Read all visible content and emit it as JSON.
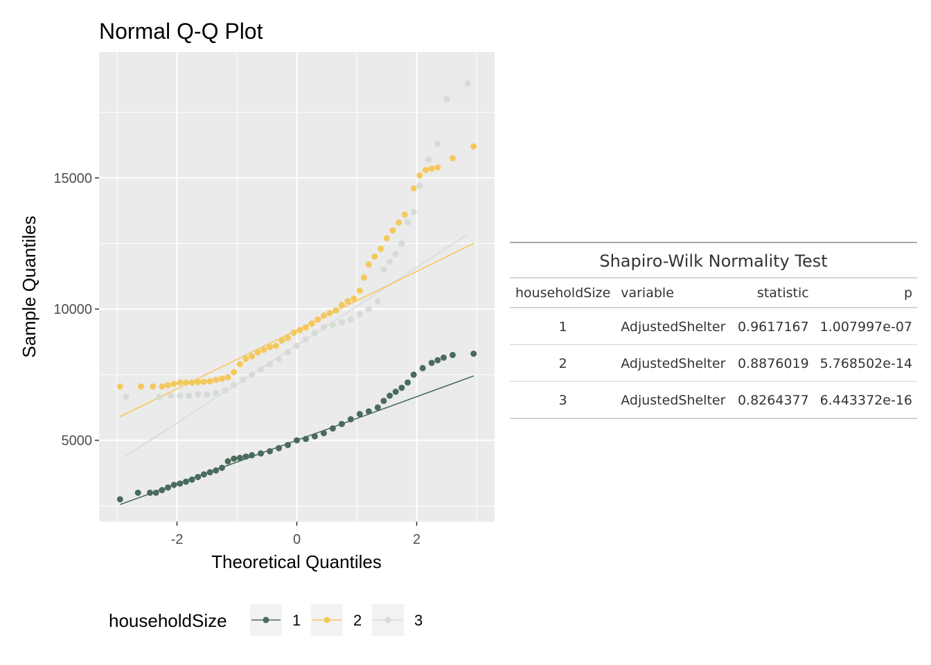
{
  "chart_data": {
    "type": "scatter",
    "title": "Normal Q-Q Plot",
    "xlabel": "Theoretical Quantiles",
    "ylabel": "Sample Quantiles",
    "xlim": [
      -3.3,
      3.3
    ],
    "ylim": [
      1900,
      19800
    ],
    "xticks": [
      -2,
      0,
      2
    ],
    "yticks": [
      5000,
      10000,
      15000
    ],
    "grid": true,
    "legend": {
      "title": "householdSize",
      "position": "bottom"
    },
    "series": [
      {
        "name": "1",
        "color": "#4a6b5c",
        "line": {
          "x": [
            -2.95,
            2.95
          ],
          "y": [
            2550,
            7450
          ]
        },
        "points": [
          [
            -2.95,
            2750
          ],
          [
            -2.65,
            3000
          ],
          [
            -2.45,
            3000
          ],
          [
            -2.35,
            3000
          ],
          [
            -2.25,
            3100
          ],
          [
            -2.15,
            3200
          ],
          [
            -2.05,
            3300
          ],
          [
            -1.95,
            3350
          ],
          [
            -1.85,
            3420
          ],
          [
            -1.75,
            3500
          ],
          [
            -1.65,
            3600
          ],
          [
            -1.55,
            3700
          ],
          [
            -1.45,
            3780
          ],
          [
            -1.35,
            3850
          ],
          [
            -1.25,
            3950
          ],
          [
            -1.15,
            4200
          ],
          [
            -1.05,
            4300
          ],
          [
            -0.95,
            4330
          ],
          [
            -0.85,
            4380
          ],
          [
            -0.75,
            4430
          ],
          [
            -0.6,
            4500
          ],
          [
            -0.45,
            4580
          ],
          [
            -0.3,
            4700
          ],
          [
            -0.15,
            4820
          ],
          [
            0,
            5000
          ],
          [
            0.15,
            5050
          ],
          [
            0.3,
            5150
          ],
          [
            0.45,
            5270
          ],
          [
            0.6,
            5450
          ],
          [
            0.75,
            5620
          ],
          [
            0.9,
            5800
          ],
          [
            1.05,
            6000
          ],
          [
            1.2,
            6100
          ],
          [
            1.35,
            6250
          ],
          [
            1.45,
            6500
          ],
          [
            1.55,
            6700
          ],
          [
            1.65,
            6850
          ],
          [
            1.75,
            7000
          ],
          [
            1.85,
            7200
          ],
          [
            1.95,
            7500
          ],
          [
            2.1,
            7750
          ],
          [
            2.25,
            7950
          ],
          [
            2.35,
            8050
          ],
          [
            2.45,
            8150
          ],
          [
            2.6,
            8250
          ],
          [
            2.95,
            8300
          ]
        ]
      },
      {
        "name": "2",
        "color": "#f5c85c",
        "line": {
          "x": [
            -2.95,
            2.95
          ],
          "y": [
            5900,
            12500
          ]
        },
        "points": [
          [
            -2.95,
            7050
          ],
          [
            -2.6,
            7050
          ],
          [
            -2.4,
            7050
          ],
          [
            -2.25,
            7050
          ],
          [
            -2.15,
            7100
          ],
          [
            -2.05,
            7150
          ],
          [
            -1.95,
            7200
          ],
          [
            -1.85,
            7200
          ],
          [
            -1.75,
            7200
          ],
          [
            -1.65,
            7220
          ],
          [
            -1.55,
            7230
          ],
          [
            -1.45,
            7250
          ],
          [
            -1.35,
            7300
          ],
          [
            -1.25,
            7350
          ],
          [
            -1.15,
            7400
          ],
          [
            -1.05,
            7600
          ],
          [
            -0.95,
            7900
          ],
          [
            -0.85,
            8100
          ],
          [
            -0.75,
            8200
          ],
          [
            -0.65,
            8350
          ],
          [
            -0.55,
            8450
          ],
          [
            -0.45,
            8550
          ],
          [
            -0.35,
            8600
          ],
          [
            -0.25,
            8800
          ],
          [
            -0.15,
            8900
          ],
          [
            -0.05,
            9100
          ],
          [
            0.05,
            9200
          ],
          [
            0.15,
            9300
          ],
          [
            0.25,
            9450
          ],
          [
            0.35,
            9600
          ],
          [
            0.45,
            9750
          ],
          [
            0.55,
            9850
          ],
          [
            0.65,
            9950
          ],
          [
            0.75,
            10150
          ],
          [
            0.85,
            10300
          ],
          [
            0.95,
            10400
          ],
          [
            1.05,
            10700
          ],
          [
            1.12,
            11200
          ],
          [
            1.2,
            11700
          ],
          [
            1.3,
            12000
          ],
          [
            1.4,
            12300
          ],
          [
            1.5,
            12700
          ],
          [
            1.6,
            13000
          ],
          [
            1.7,
            13300
          ],
          [
            1.8,
            13600
          ],
          [
            1.95,
            14600
          ],
          [
            2.05,
            15100
          ],
          [
            2.15,
            15300
          ],
          [
            2.25,
            15350
          ],
          [
            2.35,
            15400
          ],
          [
            2.6,
            15750
          ],
          [
            2.95,
            16200
          ]
        ]
      },
      {
        "name": "3",
        "color": "#d5dcd6",
        "line": {
          "x": [
            -2.85,
            2.85
          ],
          "y": [
            4400,
            12850
          ]
        },
        "points": [
          [
            -2.85,
            6650
          ],
          [
            -2.3,
            6650
          ],
          [
            -2.1,
            6700
          ],
          [
            -1.95,
            6700
          ],
          [
            -1.8,
            6700
          ],
          [
            -1.65,
            6750
          ],
          [
            -1.5,
            6750
          ],
          [
            -1.35,
            6800
          ],
          [
            -1.2,
            6900
          ],
          [
            -1.05,
            7100
          ],
          [
            -0.9,
            7300
          ],
          [
            -0.75,
            7500
          ],
          [
            -0.6,
            7700
          ],
          [
            -0.45,
            7900
          ],
          [
            -0.3,
            8100
          ],
          [
            -0.15,
            8350
          ],
          [
            0,
            8600
          ],
          [
            0.15,
            8850
          ],
          [
            0.3,
            9100
          ],
          [
            0.45,
            9300
          ],
          [
            0.6,
            9400
          ],
          [
            0.75,
            9500
          ],
          [
            0.9,
            9600
          ],
          [
            1.05,
            9800
          ],
          [
            1.2,
            10000
          ],
          [
            1.35,
            10300
          ],
          [
            1.45,
            11500
          ],
          [
            1.55,
            11800
          ],
          [
            1.65,
            12100
          ],
          [
            1.75,
            12500
          ],
          [
            1.85,
            13300
          ],
          [
            1.95,
            13700
          ],
          [
            2.05,
            14700
          ],
          [
            2.2,
            15700
          ],
          [
            2.35,
            16300
          ],
          [
            2.5,
            18000
          ],
          [
            2.85,
            18600
          ]
        ]
      }
    ]
  },
  "table": {
    "title": "Shapiro-Wilk Normality Test",
    "headers": [
      "householdSize",
      "variable",
      "statistic",
      "p"
    ],
    "rows": [
      [
        "1",
        "AdjustedShelter",
        "0.9617167",
        "1.007997e-07"
      ],
      [
        "2",
        "AdjustedShelter",
        "0.8876019",
        "5.768502e-14"
      ],
      [
        "3",
        "AdjustedShelter",
        "0.8264377",
        "6.443372e-16"
      ]
    ]
  }
}
